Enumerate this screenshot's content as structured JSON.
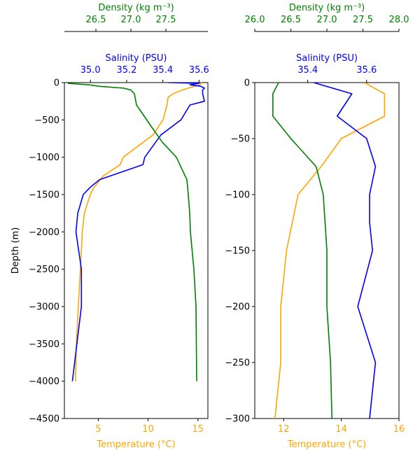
{
  "chart_data": [
    {
      "type": "line",
      "panel": "left",
      "ylabel": "Depth (m)",
      "ylim": [
        -4500,
        0
      ],
      "yticks": [
        0,
        -500,
        -1000,
        -1500,
        -2000,
        -2500,
        -3000,
        -3500,
        -4000,
        -4500
      ],
      "yticklabels": [
        "0",
        "−500",
        "−1000",
        "−1500",
        "−2000",
        "−2500",
        "−3000",
        "−3500",
        "−4000",
        "−4500"
      ],
      "axes": {
        "temperature": {
          "label": "Temperature (°C)",
          "color": "#ffa500",
          "lim": [
            1.6,
            16.0
          ],
          "ticks": [
            5,
            10,
            15
          ],
          "ticklabels": [
            "5",
            "10",
            "15"
          ]
        },
        "salinity": {
          "label": "Salinity (PSU)",
          "color": "#0000ff",
          "lim": [
            34.856,
            35.649
          ],
          "ticks": [
            35.0,
            35.2,
            35.4,
            35.6
          ],
          "ticklabels": [
            "35.0",
            "35.2",
            "35.4",
            "35.6"
          ]
        },
        "density": {
          "label": "Density (kg m⁻³)",
          "color": "#008000",
          "lim": [
            26.05,
            28.1
          ],
          "ticks": [
            26.5,
            27.0,
            27.5
          ],
          "ticklabels": [
            "26.5",
            "27.0",
            "27.5"
          ]
        }
      },
      "series": [
        {
          "axis": "temperature",
          "color": "#ffa500",
          "points": [
            [
              15.4,
              0
            ],
            [
              15.2,
              -30
            ],
            [
              14.4,
              -60
            ],
            [
              13.4,
              -100
            ],
            [
              12.5,
              -150
            ],
            [
              12.0,
              -200
            ],
            [
              11.9,
              -300
            ],
            [
              11.5,
              -500
            ],
            [
              10.5,
              -700
            ],
            [
              7.5,
              -1000
            ],
            [
              7.2,
              -1100
            ],
            [
              5.5,
              -1250
            ],
            [
              4.6,
              -1400
            ],
            [
              4.2,
              -1500
            ],
            [
              3.6,
              -1750
            ],
            [
              3.4,
              -2000
            ],
            [
              3.2,
              -2500
            ],
            [
              3.0,
              -3000
            ],
            [
              2.8,
              -3500
            ],
            [
              2.7,
              -4000
            ]
          ]
        },
        {
          "axis": "salinity",
          "color": "#0000ff",
          "points": [
            [
              35.43,
              0
            ],
            [
              35.6,
              -10
            ],
            [
              35.55,
              -30
            ],
            [
              35.61,
              -50
            ],
            [
              35.63,
              -75
            ],
            [
              35.62,
              -100
            ],
            [
              35.62,
              -150
            ],
            [
              35.63,
              -250
            ],
            [
              35.55,
              -300
            ],
            [
              35.5,
              -500
            ],
            [
              35.39,
              -700
            ],
            [
              35.3,
              -1000
            ],
            [
              35.29,
              -1100
            ],
            [
              35.05,
              -1300
            ],
            [
              35.0,
              -1400
            ],
            [
              34.96,
              -1500
            ],
            [
              34.93,
              -1750
            ],
            [
              34.92,
              -2000
            ],
            [
              34.95,
              -2500
            ],
            [
              34.95,
              -3000
            ],
            [
              34.9,
              -4000
            ]
          ]
        },
        {
          "axis": "density",
          "color": "#008000",
          "points": [
            [
              26.1,
              -10
            ],
            [
              26.4,
              -30
            ],
            [
              26.55,
              -50
            ],
            [
              26.9,
              -75
            ],
            [
              27.0,
              -100
            ],
            [
              27.05,
              -150
            ],
            [
              27.08,
              -300
            ],
            [
              27.3,
              -600
            ],
            [
              27.45,
              -800
            ],
            [
              27.65,
              -1000
            ],
            [
              27.75,
              -1200
            ],
            [
              27.8,
              -1300
            ],
            [
              27.82,
              -1500
            ],
            [
              27.84,
              -1750
            ],
            [
              27.85,
              -2000
            ],
            [
              27.9,
              -2500
            ],
            [
              27.93,
              -3000
            ],
            [
              27.94,
              -4000
            ]
          ]
        }
      ]
    },
    {
      "type": "line",
      "panel": "right",
      "ylabel": "",
      "ylim": [
        -300,
        0
      ],
      "yticks": [
        0,
        -50,
        -100,
        -150,
        -200,
        -250,
        -300
      ],
      "yticklabels": [
        "0",
        "−50",
        "−100",
        "−150",
        "−200",
        "−250",
        "−300"
      ],
      "axes": {
        "temperature": {
          "label": "Temperature (°C)",
          "color": "#ffa500",
          "lim": [
            11.0,
            16.0
          ],
          "ticks": [
            12,
            14,
            16
          ],
          "ticklabels": [
            "12",
            "14",
            "16"
          ]
        },
        "salinity": {
          "label": "Salinity (PSU)",
          "color": "#0000ff",
          "lim": [
            35.22,
            35.71
          ],
          "ticks": [
            35.4,
            35.6
          ],
          "ticklabels": [
            "35.4",
            "35.6"
          ]
        },
        "density": {
          "label": "Density (kg m⁻³)",
          "color": "#008000",
          "lim": [
            26.0,
            28.0
          ],
          "ticks": [
            26.0,
            26.5,
            27.0,
            27.5,
            28.0
          ],
          "ticklabels": [
            "26.0",
            "26.5",
            "27.0",
            "27.5",
            "28.0"
          ]
        }
      },
      "series": [
        {
          "axis": "temperature",
          "color": "#ffa500",
          "points": [
            [
              14.8,
              0
            ],
            [
              15.5,
              -10
            ],
            [
              15.5,
              -30
            ],
            [
              14.0,
              -50
            ],
            [
              13.3,
              -75
            ],
            [
              12.5,
              -100
            ],
            [
              12.3,
              -125
            ],
            [
              12.1,
              -150
            ],
            [
              11.9,
              -200
            ],
            [
              11.9,
              -250
            ],
            [
              11.7,
              -300
            ]
          ]
        },
        {
          "axis": "salinity",
          "color": "#0000ff",
          "points": [
            [
              35.42,
              0
            ],
            [
              35.55,
              -10
            ],
            [
              35.5,
              -30
            ],
            [
              35.6,
              -50
            ],
            [
              35.63,
              -75
            ],
            [
              35.61,
              -100
            ],
            [
              35.61,
              -125
            ],
            [
              35.62,
              -150
            ],
            [
              35.57,
              -200
            ],
            [
              35.63,
              -250
            ],
            [
              35.61,
              -300
            ]
          ]
        },
        {
          "axis": "density",
          "color": "#008000",
          "points": [
            [
              26.33,
              0
            ],
            [
              26.25,
              -10
            ],
            [
              26.25,
              -30
            ],
            [
              26.5,
              -50
            ],
            [
              26.85,
              -75
            ],
            [
              26.95,
              -100
            ],
            [
              27.0,
              -150
            ],
            [
              27.0,
              -200
            ],
            [
              27.05,
              -250
            ],
            [
              27.07,
              -300
            ]
          ]
        }
      ]
    }
  ]
}
